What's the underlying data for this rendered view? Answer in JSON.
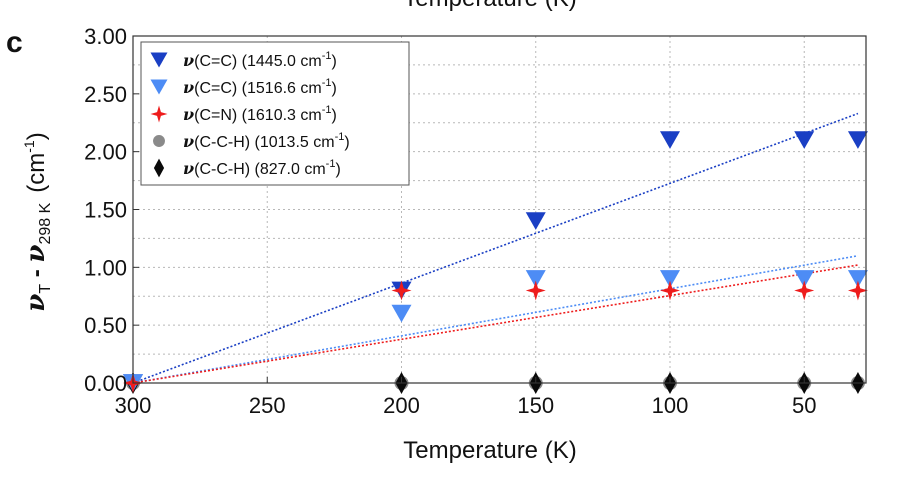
{
  "panel_label": "c",
  "top_cut_title": "Temperature (K)",
  "chart_data": {
    "type": "scatter",
    "xlabel": "Temperature (K)",
    "ylabel": {
      "nu1": "ν",
      "sub1": "T",
      "minus": " - ",
      "nu2": "ν",
      "sub2": "298 K",
      "unit": "(cm",
      "unit_sup": "-1",
      "unit_close": ")"
    },
    "x_reversed": true,
    "xlim": [
      300,
      27
    ],
    "ylim": [
      0,
      3.0
    ],
    "xticks": [
      300,
      250,
      200,
      150,
      100,
      50
    ],
    "xtick_labels": [
      "300",
      "250",
      "200",
      "150",
      "100",
      "50"
    ],
    "yticks": [
      0,
      0.5,
      1.0,
      1.5,
      2.0,
      2.5,
      3.0
    ],
    "ytick_labels": [
      "0.00",
      "0.50",
      "1.00",
      "1.50",
      "2.00",
      "2.50",
      "3.00"
    ],
    "grid": true,
    "legend_position": "top-left",
    "series": [
      {
        "name": "ν(C=C) (1445.0 cm-1)",
        "label_main": "ν",
        "label_rest": "(C=C) (1445.0 cm",
        "label_sup": "-1",
        "label_end": ")",
        "marker": "triangle-down",
        "color": "#1a3fc4",
        "x": [
          300,
          200,
          150,
          100,
          50,
          30
        ],
        "y": [
          0.0,
          0.8,
          1.4,
          2.1,
          2.1,
          2.1
        ],
        "fit": {
          "x": [
            300,
            30
          ],
          "y": [
            0.0,
            2.33
          ]
        }
      },
      {
        "name": "ν(C=C) (1516.6 cm-1)",
        "label_main": "ν",
        "label_rest": "(C=C) (1516.6 cm",
        "label_sup": "-1",
        "label_end": ")",
        "marker": "triangle-down",
        "color": "#4d8cf5",
        "x": [
          300,
          200,
          150,
          100,
          50,
          30
        ],
        "y": [
          0.0,
          0.6,
          0.9,
          0.9,
          0.9,
          0.9
        ],
        "fit": {
          "x": [
            300,
            30
          ],
          "y": [
            0.0,
            1.1
          ]
        }
      },
      {
        "name": "ν(C=N) (1610.3 cm-1)",
        "label_main": "ν",
        "label_rest": "(C=N) (1610.3 cm",
        "label_sup": "-1",
        "label_end": ")",
        "marker": "star4",
        "color": "#ee1c1c",
        "x": [
          300,
          200,
          150,
          100,
          50,
          30
        ],
        "y": [
          0.0,
          0.8,
          0.8,
          0.8,
          0.8,
          0.8
        ],
        "fit": {
          "x": [
            300,
            30
          ],
          "y": [
            0.0,
            1.02
          ]
        }
      },
      {
        "name": "ν(C-C-H) (1013.5 cm-1)",
        "label_main": "ν",
        "label_rest": "(C-C-H) (1013.5 cm",
        "label_sup": "-1",
        "label_end": ")",
        "marker": "circle",
        "color": "#8a8a8a",
        "x": [
          300,
          200,
          150,
          100,
          50,
          30
        ],
        "y": [
          0.0,
          0.0,
          0.0,
          0.0,
          0.0,
          0.0
        ],
        "fit": {
          "x": [
            300,
            30
          ],
          "y": [
            0.0,
            0.0
          ]
        }
      },
      {
        "name": "ν(C-C-H) (827.0 cm-1)",
        "label_main": "ν",
        "label_rest": "(C-C-H) (827.0 cm",
        "label_sup": "-1",
        "label_end": ")",
        "marker": "diamond",
        "color": "#0a0a0a",
        "x": [
          300,
          200,
          150,
          100,
          50,
          30
        ],
        "y": [
          0.0,
          0.0,
          0.0,
          0.0,
          0.0,
          0.0
        ],
        "fit": {
          "x": [
            300,
            30
          ],
          "y": [
            0.0,
            0.0
          ]
        }
      }
    ]
  }
}
